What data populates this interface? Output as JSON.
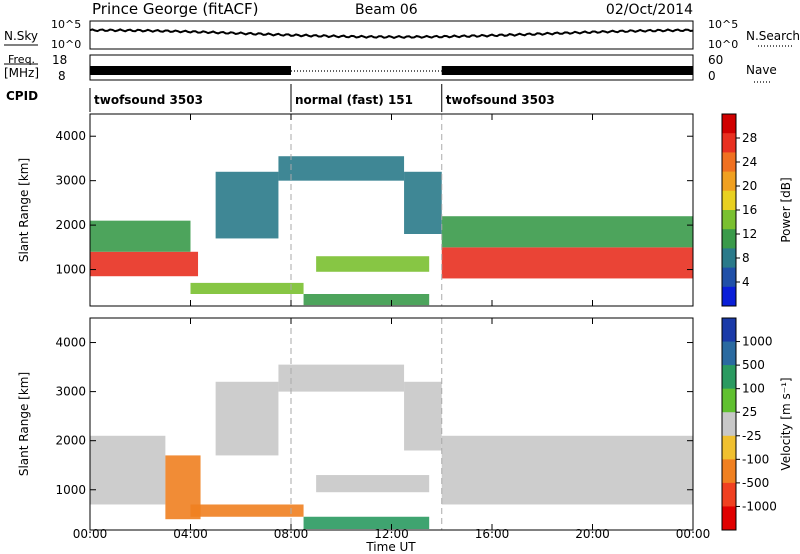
{
  "header": {
    "station": "Prince George (fitACF)",
    "beam": "Beam 06",
    "date": "02/Oct/2014"
  },
  "summary": {
    "nsky_label": "N.Sky",
    "nsearch_label": "N.Search",
    "freq_label_1": "Freq.",
    "freq_label_2": "[MHz]",
    "nave_label": "Nave",
    "cpid_label": "CPID",
    "nsky_ticks": [
      "10^5",
      "10^0"
    ],
    "nsearch_ticks": [
      "10^5",
      "10^0"
    ],
    "freq_ticks": [
      "18",
      "8"
    ],
    "nave_ticks": [
      "60",
      "0"
    ]
  },
  "cpid_segments": [
    {
      "label": "twofsound 3503",
      "start_h": 0,
      "end_h": 8
    },
    {
      "label": "normal (fast) 151",
      "start_h": 8,
      "end_h": 14
    },
    {
      "label": "twofsound 3503",
      "start_h": 14,
      "end_h": 24
    }
  ],
  "chart_data": [
    {
      "type": "heatmap",
      "title": "Power",
      "xlabel": "Time UT",
      "ylabel": "Slant Range [km]",
      "x_range": [
        "00:00",
        "24:00"
      ],
      "xticks": [
        "00:00",
        "04:00",
        "08:00",
        "12:00",
        "16:00",
        "20:00",
        "00:00"
      ],
      "ylim": [
        180,
        4500
      ],
      "yticks": [
        1000,
        2000,
        3000,
        4000
      ],
      "colorbar": {
        "label": "Power [dB]",
        "ticks": [
          "28",
          "24",
          "20",
          "16",
          "12",
          "8",
          "4"
        ],
        "range": [
          0,
          30
        ],
        "colors": [
          "#0a1fd8",
          "#2050a8",
          "#2a7a8a",
          "#3a9a4a",
          "#7ac030",
          "#e8d020",
          "#f0a020",
          "#f07020",
          "#e83020",
          "#d00000"
        ]
      },
      "bands": [
        {
          "t0": 0.0,
          "t1": 4.3,
          "r0": 850,
          "r1": 1400,
          "level": 26
        },
        {
          "t0": 0.0,
          "t1": 4.0,
          "r0": 1400,
          "r1": 2100,
          "level": 10
        },
        {
          "t0": 4.0,
          "t1": 8.5,
          "r0": 450,
          "r1": 700,
          "level": 12
        },
        {
          "t0": 8.5,
          "t1": 13.5,
          "r0": 200,
          "r1": 450,
          "level": 10
        },
        {
          "t0": 5.0,
          "t1": 7.5,
          "r0": 1700,
          "r1": 3200,
          "level": 6
        },
        {
          "t0": 7.5,
          "t1": 12.5,
          "r0": 3000,
          "r1": 3550,
          "level": 6
        },
        {
          "t0": 12.5,
          "t1": 14.0,
          "r0": 1800,
          "r1": 3200,
          "level": 6
        },
        {
          "t0": 9.0,
          "t1": 13.5,
          "r0": 950,
          "r1": 1300,
          "level": 14
        },
        {
          "t0": 14.0,
          "t1": 24.0,
          "r0": 800,
          "r1": 1500,
          "level": 26
        },
        {
          "t0": 14.0,
          "t1": 24.0,
          "r0": 1500,
          "r1": 2200,
          "level": 10
        }
      ]
    },
    {
      "type": "heatmap",
      "title": "Velocity",
      "xlabel": "Time UT",
      "ylabel": "Slant Range [km]",
      "x_range": [
        "00:00",
        "24:00"
      ],
      "xticks": [
        "00:00",
        "04:00",
        "08:00",
        "12:00",
        "16:00",
        "20:00",
        "00:00"
      ],
      "ylim": [
        180,
        4500
      ],
      "yticks": [
        1000,
        2000,
        3000,
        4000
      ],
      "colorbar": {
        "label": "Velocity [m s⁻¹]",
        "ticks": [
          "1000",
          "500",
          "100",
          "25",
          "-25",
          "-100",
          "-500",
          "-1000"
        ],
        "colors": [
          "#1a3aa8",
          "#2a6aa0",
          "#2a9a60",
          "#60c030",
          "#c8c8c8",
          "#f0c030",
          "#f08020",
          "#f04020",
          "#e00000"
        ]
      },
      "bands": [
        {
          "t0": 0.0,
          "t1": 3.0,
          "r0": 700,
          "r1": 2100,
          "vel": 0
        },
        {
          "t0": 3.0,
          "t1": 4.4,
          "r0": 400,
          "r1": 1700,
          "vel": -500
        },
        {
          "t0": 4.0,
          "t1": 8.5,
          "r0": 450,
          "r1": 700,
          "vel": -300
        },
        {
          "t0": 8.5,
          "t1": 13.5,
          "r0": 200,
          "r1": 450,
          "vel": 100
        },
        {
          "t0": 5.0,
          "t1": 7.5,
          "r0": 1700,
          "r1": 3200,
          "vel": 0
        },
        {
          "t0": 7.5,
          "t1": 12.5,
          "r0": 3000,
          "r1": 3550,
          "vel": 0
        },
        {
          "t0": 12.5,
          "t1": 14.0,
          "r0": 1800,
          "r1": 3200,
          "vel": 0
        },
        {
          "t0": 9.0,
          "t1": 13.5,
          "r0": 950,
          "r1": 1300,
          "vel": 0
        },
        {
          "t0": 14.0,
          "t1": 24.0,
          "r0": 700,
          "r1": 2100,
          "vel": 0
        }
      ]
    }
  ]
}
